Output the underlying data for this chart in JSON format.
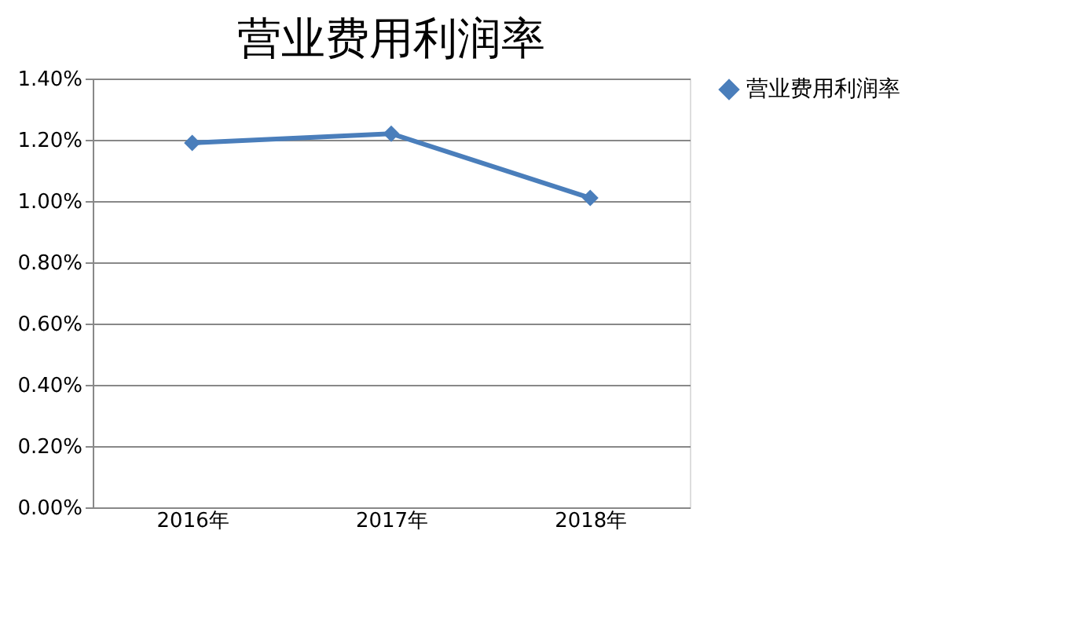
{
  "chart_data": {
    "type": "line",
    "title": "营业费用利润率",
    "categories": [
      "2016年",
      "2017年",
      "2018年"
    ],
    "series": [
      {
        "name": "营业费用利润率",
        "color": "#4a7ebb",
        "values": [
          1.19,
          1.22,
          1.01
        ]
      }
    ],
    "ylim": [
      0,
      1.4
    ],
    "yticks": [
      {
        "value": 0,
        "label": "0.00%"
      },
      {
        "value": 0.2,
        "label": "0.20%"
      },
      {
        "value": 0.4,
        "label": "0.40%"
      },
      {
        "value": 0.6,
        "label": "0.60%"
      },
      {
        "value": 0.8,
        "label": "0.80%"
      },
      {
        "value": 1.0,
        "label": "1.00%"
      },
      {
        "value": 1.2,
        "label": "1.20%"
      },
      {
        "value": 1.4,
        "label": "1.40%"
      }
    ],
    "grid": "y",
    "legend": "right",
    "marker": "diamond",
    "line_style": "solid"
  }
}
